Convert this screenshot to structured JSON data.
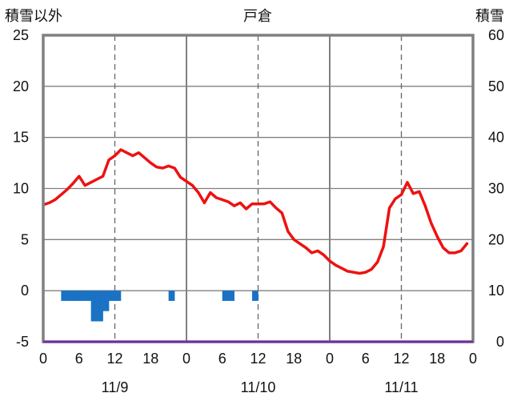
{
  "chart_data": {
    "type": "line",
    "title": "戸倉",
    "left_axis_label": "積雪以外",
    "right_axis_label": "積雪",
    "left_ylim": [
      -5,
      25
    ],
    "left_yticks": [
      "-5",
      "0",
      "5",
      "10",
      "15",
      "20",
      "25"
    ],
    "right_ylim": [
      0,
      60
    ],
    "right_yticks": [
      "0",
      "10",
      "20",
      "30",
      "40",
      "50",
      "60"
    ],
    "x_unit": "hour",
    "xlim": [
      0,
      72
    ],
    "xtick_labels": [
      "0",
      "6",
      "12",
      "18",
      "0",
      "6",
      "12",
      "18",
      "0",
      "6",
      "12",
      "18",
      "0"
    ],
    "day_labels": [
      {
        "label": "11/9",
        "at": 12
      },
      {
        "label": "11/10",
        "at": 36
      },
      {
        "label": "11/11",
        "at": 60
      }
    ],
    "grid": true,
    "colors": {
      "line": "#ee1111",
      "bars": "#1a72c4",
      "baseline": "#7030a0",
      "frame": "#808080",
      "grid": "#666666"
    },
    "series": [
      {
        "kind": "line",
        "axis": "left",
        "x": [
          0,
          1,
          2,
          3,
          4,
          5,
          6,
          7,
          8,
          9,
          10,
          11,
          12,
          13,
          14,
          15,
          16,
          17,
          18,
          19,
          20,
          21,
          22,
          23,
          24,
          25,
          26,
          27,
          28,
          29,
          30,
          31,
          32,
          33,
          34,
          35,
          36,
          37,
          38,
          39,
          40,
          41,
          42,
          43,
          44,
          45,
          46,
          47,
          48,
          49,
          50,
          51,
          52,
          53,
          54,
          55,
          56,
          57,
          58,
          59,
          60,
          61,
          62,
          63,
          64,
          65,
          66,
          67,
          68,
          69,
          70,
          71
        ],
        "y": [
          8.4,
          8.6,
          8.9,
          9.4,
          9.9,
          10.5,
          11.2,
          10.3,
          10.6,
          10.9,
          11.2,
          12.8,
          13.2,
          13.8,
          13.5,
          13.2,
          13.5,
          13.0,
          12.5,
          12.1,
          12.0,
          12.2,
          12.0,
          11.1,
          10.7,
          10.3,
          9.6,
          8.6,
          9.6,
          9.1,
          8.9,
          8.7,
          8.3,
          8.6,
          8.0,
          8.5,
          8.5,
          8.5,
          8.7,
          8.1,
          7.6,
          5.8,
          5.0,
          4.6,
          4.2,
          3.7,
          3.9,
          3.5,
          2.9,
          2.5,
          2.2,
          1.9,
          1.8,
          1.7,
          1.8,
          2.1,
          2.8,
          4.3,
          8.1,
          9.0,
          9.4,
          10.6,
          9.5,
          9.7,
          8.3,
          6.6,
          5.3,
          4.2,
          3.7,
          3.7,
          3.9,
          4.6
        ]
      },
      {
        "kind": "bar",
        "axis": "left",
        "x": [
          4,
          5,
          6,
          7,
          8,
          9,
          10,
          11,
          12,
          13,
          22,
          31,
          32,
          36
        ],
        "y": [
          -1,
          -1,
          -1,
          -1,
          -1,
          -3,
          -3,
          -2,
          -1,
          -1,
          -1,
          -1,
          -1,
          -1
        ]
      }
    ]
  }
}
